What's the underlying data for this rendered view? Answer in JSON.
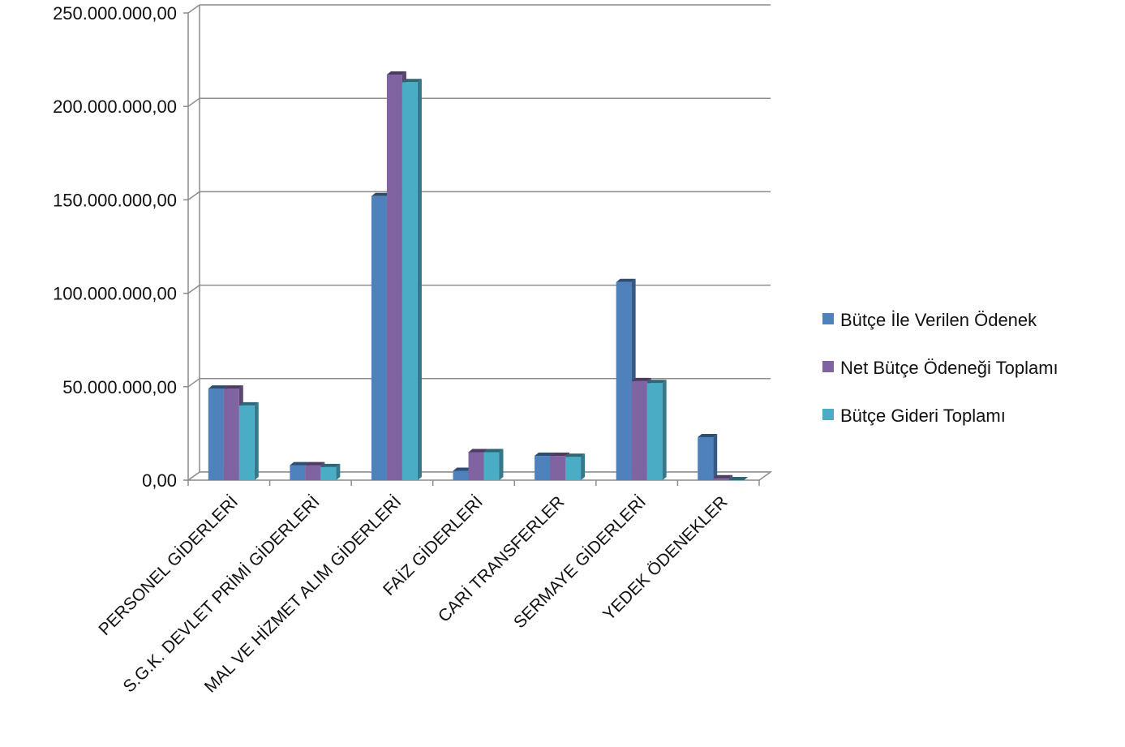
{
  "chart_data": {
    "type": "bar",
    "title": "",
    "xlabel": "",
    "ylabel": "",
    "ylim": [
      0,
      250000000
    ],
    "yticks": [
      {
        "value": 0,
        "label": "0,00"
      },
      {
        "value": 50000000,
        "label": "50.000.000,00"
      },
      {
        "value": 100000000,
        "label": "100.000.000,00"
      },
      {
        "value": 150000000,
        "label": "150.000.000,00"
      },
      {
        "value": 200000000,
        "label": "200.000.000,00"
      },
      {
        "value": 250000000,
        "label": "250.000.000,00"
      }
    ],
    "categories": [
      "PERSONEL GİDERLERİ",
      "S.G.K. DEVLET PRİMİ GİDERLERİ",
      "MAL VE HİZMET ALIM GİDERLERİ",
      "FAİZ GİDERLERİ",
      "CARİ TRANSFERLER",
      "SERMAYE GİDERLERİ",
      "YEDEK ÖDENEKLER"
    ],
    "series": [
      {
        "name": "Bütçe İle Verilen Ödenek",
        "color": "#4f81bd",
        "values": [
          49000000,
          8000000,
          152000000,
          5000000,
          13000000,
          106000000,
          23000000
        ]
      },
      {
        "name": "Net Bütçe Ödeneği Toplamı",
        "color": "#8064a2",
        "values": [
          49000000,
          8000000,
          217000000,
          15000000,
          13000000,
          53000000,
          1000000
        ]
      },
      {
        "name": "Bütçe Gideri Toplamı",
        "color": "#4bacc6",
        "values": [
          40000000,
          7000000,
          213000000,
          15000000,
          12500000,
          52000000,
          0
        ]
      }
    ],
    "grid": true,
    "legend_position": "right"
  }
}
